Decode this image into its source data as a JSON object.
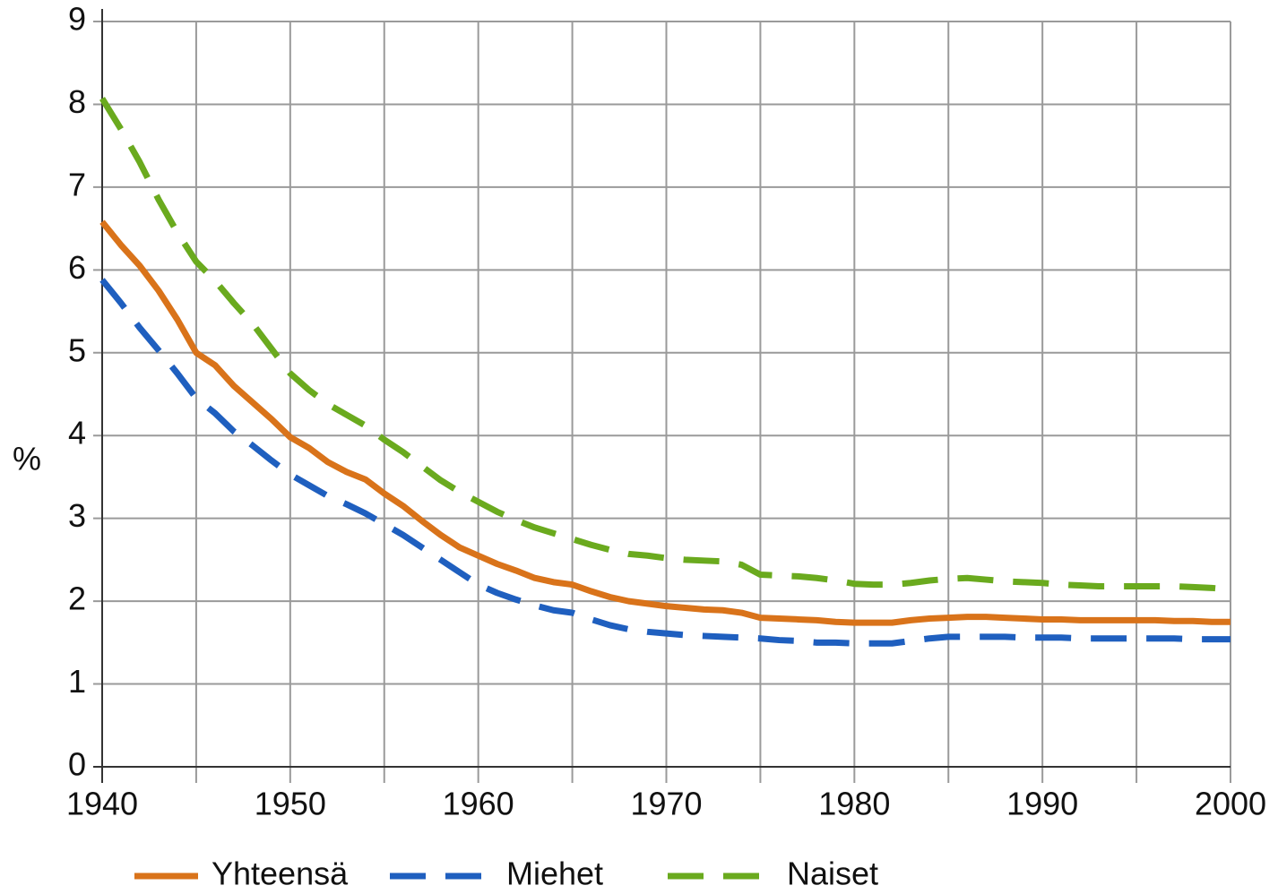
{
  "chart_data": {
    "type": "line",
    "ylabel": "%",
    "x": [
      1940,
      1941,
      1942,
      1943,
      1944,
      1945,
      1946,
      1947,
      1948,
      1949,
      1950,
      1951,
      1952,
      1953,
      1954,
      1955,
      1956,
      1957,
      1958,
      1959,
      1960,
      1961,
      1962,
      1963,
      1964,
      1965,
      1966,
      1967,
      1968,
      1969,
      1970,
      1971,
      1972,
      1973,
      1974,
      1975,
      1976,
      1977,
      1978,
      1979,
      1980,
      1981,
      1982,
      1983,
      1984,
      1985,
      1986,
      1987,
      1988,
      1989,
      1990,
      1991,
      1992,
      1993,
      1994,
      1995,
      1996,
      1997,
      1998,
      1999,
      2000
    ],
    "series": [
      {
        "name": "Yhteensä",
        "color": "#d9731a",
        "dashed": false,
        "values": [
          6.58,
          6.3,
          6.05,
          5.75,
          5.4,
          5.0,
          4.85,
          4.6,
          4.4,
          4.2,
          3.98,
          3.85,
          3.68,
          3.56,
          3.47,
          3.3,
          3.15,
          2.97,
          2.8,
          2.65,
          2.55,
          2.45,
          2.37,
          2.28,
          2.23,
          2.2,
          2.12,
          2.05,
          2.0,
          1.97,
          1.94,
          1.92,
          1.9,
          1.89,
          1.86,
          1.8,
          1.79,
          1.78,
          1.77,
          1.75,
          1.74,
          1.74,
          1.74,
          1.77,
          1.79,
          1.8,
          1.81,
          1.81,
          1.8,
          1.79,
          1.78,
          1.78,
          1.77,
          1.77,
          1.77,
          1.77,
          1.77,
          1.76,
          1.76,
          1.75,
          1.75
        ]
      },
      {
        "name": "Miehet",
        "color": "#1f5fbf",
        "dashed": true,
        "values": [
          5.88,
          5.6,
          5.3,
          5.03,
          4.75,
          4.45,
          4.27,
          4.05,
          3.88,
          3.7,
          3.53,
          3.4,
          3.27,
          3.17,
          3.06,
          2.93,
          2.8,
          2.65,
          2.5,
          2.35,
          2.2,
          2.1,
          2.02,
          1.95,
          1.89,
          1.86,
          1.78,
          1.71,
          1.66,
          1.63,
          1.61,
          1.59,
          1.58,
          1.57,
          1.56,
          1.55,
          1.53,
          1.52,
          1.5,
          1.5,
          1.49,
          1.49,
          1.49,
          1.52,
          1.55,
          1.57,
          1.57,
          1.57,
          1.57,
          1.56,
          1.56,
          1.56,
          1.55,
          1.55,
          1.55,
          1.55,
          1.55,
          1.55,
          1.54,
          1.54,
          1.54
        ]
      },
      {
        "name": "Naiset",
        "color": "#6aaa1e",
        "dashed": true,
        "values": [
          8.07,
          7.7,
          7.3,
          6.85,
          6.45,
          6.1,
          5.87,
          5.6,
          5.35,
          5.05,
          4.75,
          4.55,
          4.38,
          4.25,
          4.12,
          3.95,
          3.8,
          3.63,
          3.46,
          3.32,
          3.2,
          3.08,
          2.98,
          2.89,
          2.82,
          2.75,
          2.68,
          2.62,
          2.57,
          2.55,
          2.52,
          2.5,
          2.49,
          2.48,
          2.44,
          2.32,
          2.31,
          2.3,
          2.28,
          2.25,
          2.21,
          2.2,
          2.2,
          2.22,
          2.25,
          2.27,
          2.28,
          2.26,
          2.24,
          2.23,
          2.22,
          2.2,
          2.19,
          2.18,
          2.18,
          2.18,
          2.18,
          2.18,
          2.17,
          2.16,
          2.14
        ]
      }
    ],
    "xlim": [
      1940,
      2000
    ],
    "xticks": [
      1940,
      1950,
      1960,
      1970,
      1980,
      1990,
      2000
    ],
    "xgrid_minor": [
      1945,
      1955,
      1965,
      1975,
      1985,
      1995
    ],
    "ylim": [
      0,
      9
    ],
    "yticks": [
      0,
      1,
      2,
      3,
      4,
      5,
      6,
      7,
      8,
      9
    ],
    "grid": true,
    "legend": "bottom"
  }
}
